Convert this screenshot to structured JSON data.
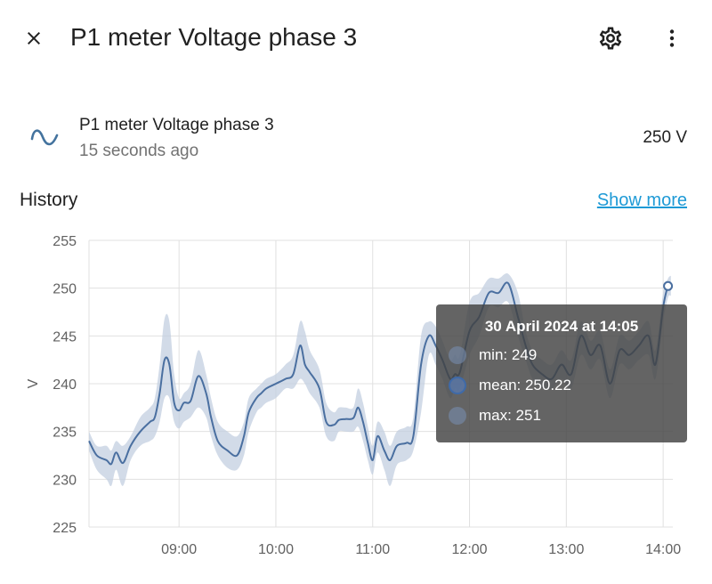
{
  "dialog": {
    "title": "P1 meter Voltage phase 3",
    "close_icon": "close-icon",
    "settings_icon": "gear-icon",
    "more_icon": "more-vertical-icon"
  },
  "entity": {
    "icon": "sine-wave-icon",
    "name": "P1 meter Voltage phase 3",
    "last_updated": "15 seconds ago",
    "state": "250 V"
  },
  "history": {
    "title": "History",
    "show_more": "Show more"
  },
  "tooltip": {
    "title": "30 April 2024 at 14:05",
    "rows": [
      "min: 249",
      "mean: 250.22",
      "max: 251"
    ]
  },
  "colors": {
    "line": "#4a6fa0",
    "band": "#c3cfe0",
    "link": "#1e9ad6",
    "grid": "#e0e0e0"
  },
  "chart_data": {
    "type": "line",
    "ylabel": "V",
    "ylim": [
      225,
      255
    ],
    "yticks": [
      225,
      230,
      235,
      240,
      245,
      250,
      255
    ],
    "xticks": [
      "09:00",
      "10:00",
      "11:00",
      "12:00",
      "13:00",
      "14:00"
    ],
    "xtick_hours": [
      9,
      10,
      11,
      12,
      13,
      14
    ],
    "xlim_hours": [
      8.07,
      14.1
    ],
    "grid": true,
    "series": [
      {
        "x": [
          8.07,
          8.15,
          8.25,
          8.3,
          8.35,
          8.42,
          8.5,
          8.6,
          8.7,
          8.75,
          8.8,
          8.85,
          8.9,
          8.95,
          9.0,
          9.05,
          9.12,
          9.2,
          9.28,
          9.33,
          9.4,
          9.5,
          9.6,
          9.67,
          9.72,
          9.8,
          9.85,
          9.9,
          10.0,
          10.1,
          10.18,
          10.25,
          10.3,
          10.35,
          10.45,
          10.52,
          10.6,
          10.65,
          10.72,
          10.8,
          10.85,
          10.9,
          10.95,
          11.0,
          11.05,
          11.12,
          11.18,
          11.25,
          11.35,
          11.42,
          11.5,
          11.58,
          11.65,
          11.72,
          11.8,
          11.85,
          11.9,
          12.0,
          12.1,
          12.2,
          12.3,
          12.4,
          12.5,
          12.58,
          12.65,
          12.75,
          12.85,
          12.95,
          13.05,
          13.15,
          13.25,
          13.35,
          13.45,
          13.55,
          13.65,
          13.75,
          13.85,
          13.92,
          14.0,
          14.05,
          14.08
        ],
        "mean": [
          234,
          232.5,
          232,
          231.6,
          232.8,
          231.7,
          233.5,
          235,
          236,
          236.5,
          239,
          242.5,
          242,
          238,
          237.2,
          238,
          238.2,
          240.8,
          239,
          236.5,
          234,
          233,
          232.5,
          234.5,
          237,
          238.5,
          239,
          239.5,
          240,
          240.5,
          241,
          244,
          242,
          241.2,
          239.5,
          236,
          235.7,
          236.2,
          236.3,
          236.4,
          237.5,
          236,
          233.8,
          232,
          234.5,
          233,
          232,
          233.5,
          233.8,
          234.5,
          242,
          245,
          244,
          242.5,
          240.5,
          241,
          241.2,
          245.5,
          247,
          249.5,
          249.5,
          250.5,
          247,
          244,
          242,
          241,
          240.5,
          242,
          241,
          245,
          243,
          244,
          240,
          243.5,
          243,
          244,
          245,
          242,
          248,
          250.22,
          250.3
        ],
        "min": [
          233,
          231,
          230,
          229.3,
          231,
          229.3,
          232,
          233.5,
          234,
          234.5,
          236,
          238.5,
          238.5,
          236,
          235.3,
          236,
          236.5,
          237.5,
          236.5,
          234.5,
          232.5,
          231.2,
          231,
          232.5,
          235,
          237,
          237.5,
          238,
          238.5,
          239.5,
          239.5,
          240.5,
          240,
          239,
          237.5,
          234.5,
          234,
          235,
          235,
          235,
          235.5,
          234,
          232,
          230.5,
          232.8,
          231,
          229.3,
          231.5,
          232,
          233,
          237,
          243,
          242,
          240.5,
          238.5,
          239.5,
          239.5,
          243,
          245,
          248,
          248,
          248.5,
          245,
          242.5,
          240.5,
          239.5,
          239.5,
          240.5,
          239.5,
          243,
          241.5,
          242.5,
          238.5,
          242,
          241.5,
          242.5,
          243,
          240.5,
          246.5,
          249,
          249.2
        ],
        "max": [
          235,
          233.5,
          233.5,
          233,
          234,
          233.5,
          234.5,
          236.5,
          237.5,
          238.5,
          242,
          246.8,
          246.5,
          241,
          238.5,
          239,
          240,
          243.5,
          241,
          238.5,
          236,
          235,
          234.5,
          236,
          238.5,
          239.5,
          240,
          240.5,
          241,
          242,
          243,
          246.5,
          245.5,
          243.5,
          241.5,
          238,
          237,
          237.5,
          237.5,
          237.5,
          239.5,
          238,
          235.5,
          233.5,
          236,
          235,
          233.5,
          235,
          235.5,
          236.5,
          245,
          246.5,
          246,
          244.5,
          242.5,
          243,
          243,
          248.5,
          249.5,
          251,
          251,
          251.5,
          249.5,
          245.5,
          243.5,
          242.5,
          242,
          243.5,
          242.5,
          246.5,
          244.5,
          245.5,
          241.5,
          245,
          244.5,
          245.5,
          246.5,
          243.5,
          249.5,
          251,
          251.3
        ]
      }
    ]
  }
}
